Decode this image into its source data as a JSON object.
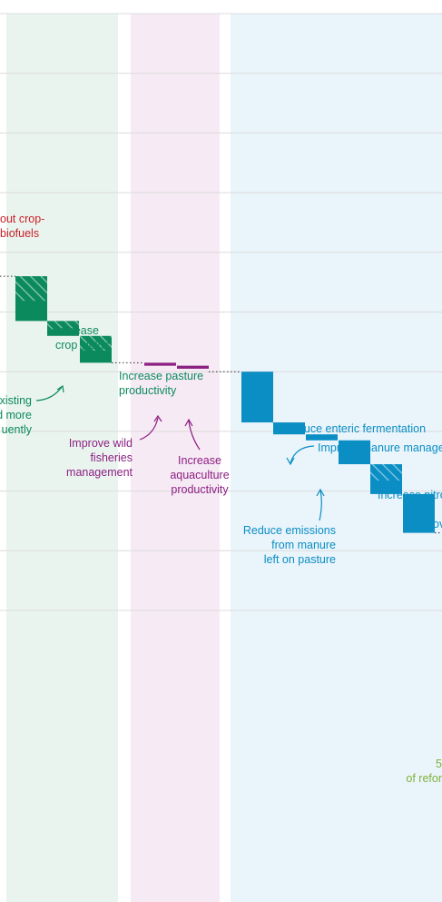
{
  "chart_data": {
    "type": "bar",
    "subtype": "waterfall",
    "title": "",
    "xlabel": "",
    "ylabel": "",
    "grid": true,
    "colors": {
      "crops": "#0b8a5e",
      "fisheries": "#8c1f82",
      "livestock": "#0a8ec4",
      "bioenergy_note": "#c8212b",
      "reforestation_note": "#7fb23a",
      "crops_band": "#eaf4ef",
      "fisheries_band": "#f6eaf4",
      "livestock_band": "#eaf4fb",
      "gridline": "#dcdcdc"
    },
    "groups": [
      {
        "name": "crops",
        "color": "#0b8a5e"
      },
      {
        "name": "fisheries",
        "color": "#8c1f82"
      },
      {
        "name": "livestock",
        "color": "#0a8ec4"
      }
    ],
    "steps": [
      {
        "label": "Increase crop yields",
        "group": "crops",
        "start": 5.6,
        "end": 4.85,
        "hatched": true
      },
      {
        "label": "Plant existing cropland more frequently",
        "group": "crops",
        "start": 4.85,
        "end": 4.6,
        "hatched": true
      },
      {
        "label": "Increase pasture productivity",
        "group": "crops",
        "start": 4.6,
        "end": 4.15,
        "hatched": true
      },
      {
        "label": "Improve wild fisheries management",
        "group": "fisheries",
        "start": 4.15,
        "end": 4.1,
        "hatched": false
      },
      {
        "label": "Increase aquaculture productivity",
        "group": "fisheries",
        "start": 4.1,
        "end": 4.05,
        "hatched": false
      },
      {
        "label": "Reduce enteric fermentation",
        "group": "livestock",
        "start": 4.0,
        "end": 3.15,
        "hatched": false
      },
      {
        "label": "Improve manure management",
        "group": "livestock",
        "start": 3.15,
        "end": 2.95,
        "hatched": false
      },
      {
        "label": "Reduce emissions from manure left on pasture",
        "group": "livestock",
        "start": 2.95,
        "end": 2.85,
        "hatched": false
      },
      {
        "label": "Increase nitrogen use efficiency",
        "group": "livestock",
        "start": 2.85,
        "end": 2.45,
        "hatched": false
      },
      {
        "label": "Improve rice management",
        "group": "livestock",
        "start": 2.45,
        "end": 1.95,
        "hatched": true
      },
      {
        "label": "",
        "group": "livestock",
        "start": 1.95,
        "end": 1.3,
        "hatched": false
      }
    ],
    "annotations": {
      "phase_out_biofuels": [
        "out crop-",
        "biofuels"
      ],
      "increase_crop_yields": [
        "Increase",
        "crop yields"
      ],
      "plant_more_frequently": [
        "xisting",
        "d more",
        "uently"
      ],
      "increase_pasture": [
        "Increase pasture",
        "productivity"
      ],
      "wild_fisheries": [
        "Improve wild",
        "fisheries",
        "management"
      ],
      "aquaculture": [
        "Increase",
        "aquaculture",
        "productivity"
      ],
      "enteric": [
        "Reduce enteric fermentation"
      ],
      "manure": [
        "Improve manure manage"
      ],
      "pasture_manure": [
        "Reduce emissions",
        "from manure",
        "left on pasture"
      ],
      "nitrogen": [
        "Increase nitro"
      ],
      "rice": [
        "Improv"
      ],
      "reforestation": [
        "5",
        "of refor"
      ]
    }
  }
}
